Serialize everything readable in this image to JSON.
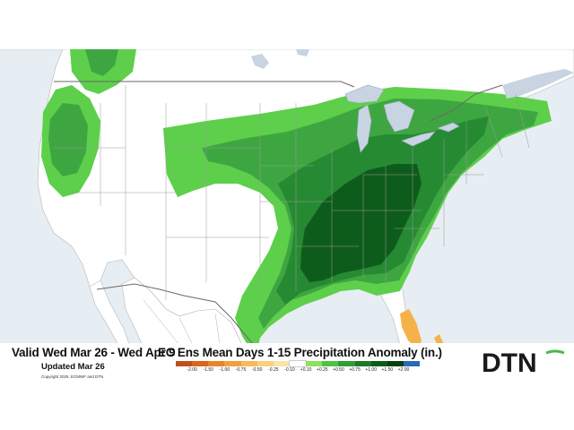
{
  "valid_text": "Valid Wed Mar 26 - Wed Apr 9",
  "title": "EC Ens Mean Days 1-15 Precipitation Anomaly (in.)",
  "updated": "Updated Mar 26",
  "copyright": "Copyright 2025, ECMWF and DTN",
  "logo": "DTN",
  "legend": {
    "ticks": [
      "-2.00",
      "-1.50",
      "-1.00",
      "-0.75",
      "-0.50",
      "-0.25",
      "-0.10",
      "+0.10",
      "+0.25",
      "+0.50",
      "+0.75",
      "+1.00",
      "+1.50",
      "+2.00"
    ],
    "colors": [
      "#c0501a",
      "#d8661a",
      "#e8842a",
      "#f0a040",
      "#f6bb5a",
      "#f9d07c",
      "#fbe3a8",
      "#ffffff",
      "#8fe060",
      "#52c245",
      "#2f9e36",
      "#1b7a26",
      "#0e5a1a",
      "#083f10",
      "#2a6ab8"
    ]
  },
  "colors": {
    "ocean": "#e6edf3",
    "land": "#ffffff",
    "lightgreen": "#5dcf4a",
    "green": "#3ea641",
    "medgreen": "#268a33",
    "darkgreen": "#0e5c1b",
    "orange": "#f5b24a",
    "lake": "#c8d4e2"
  }
}
